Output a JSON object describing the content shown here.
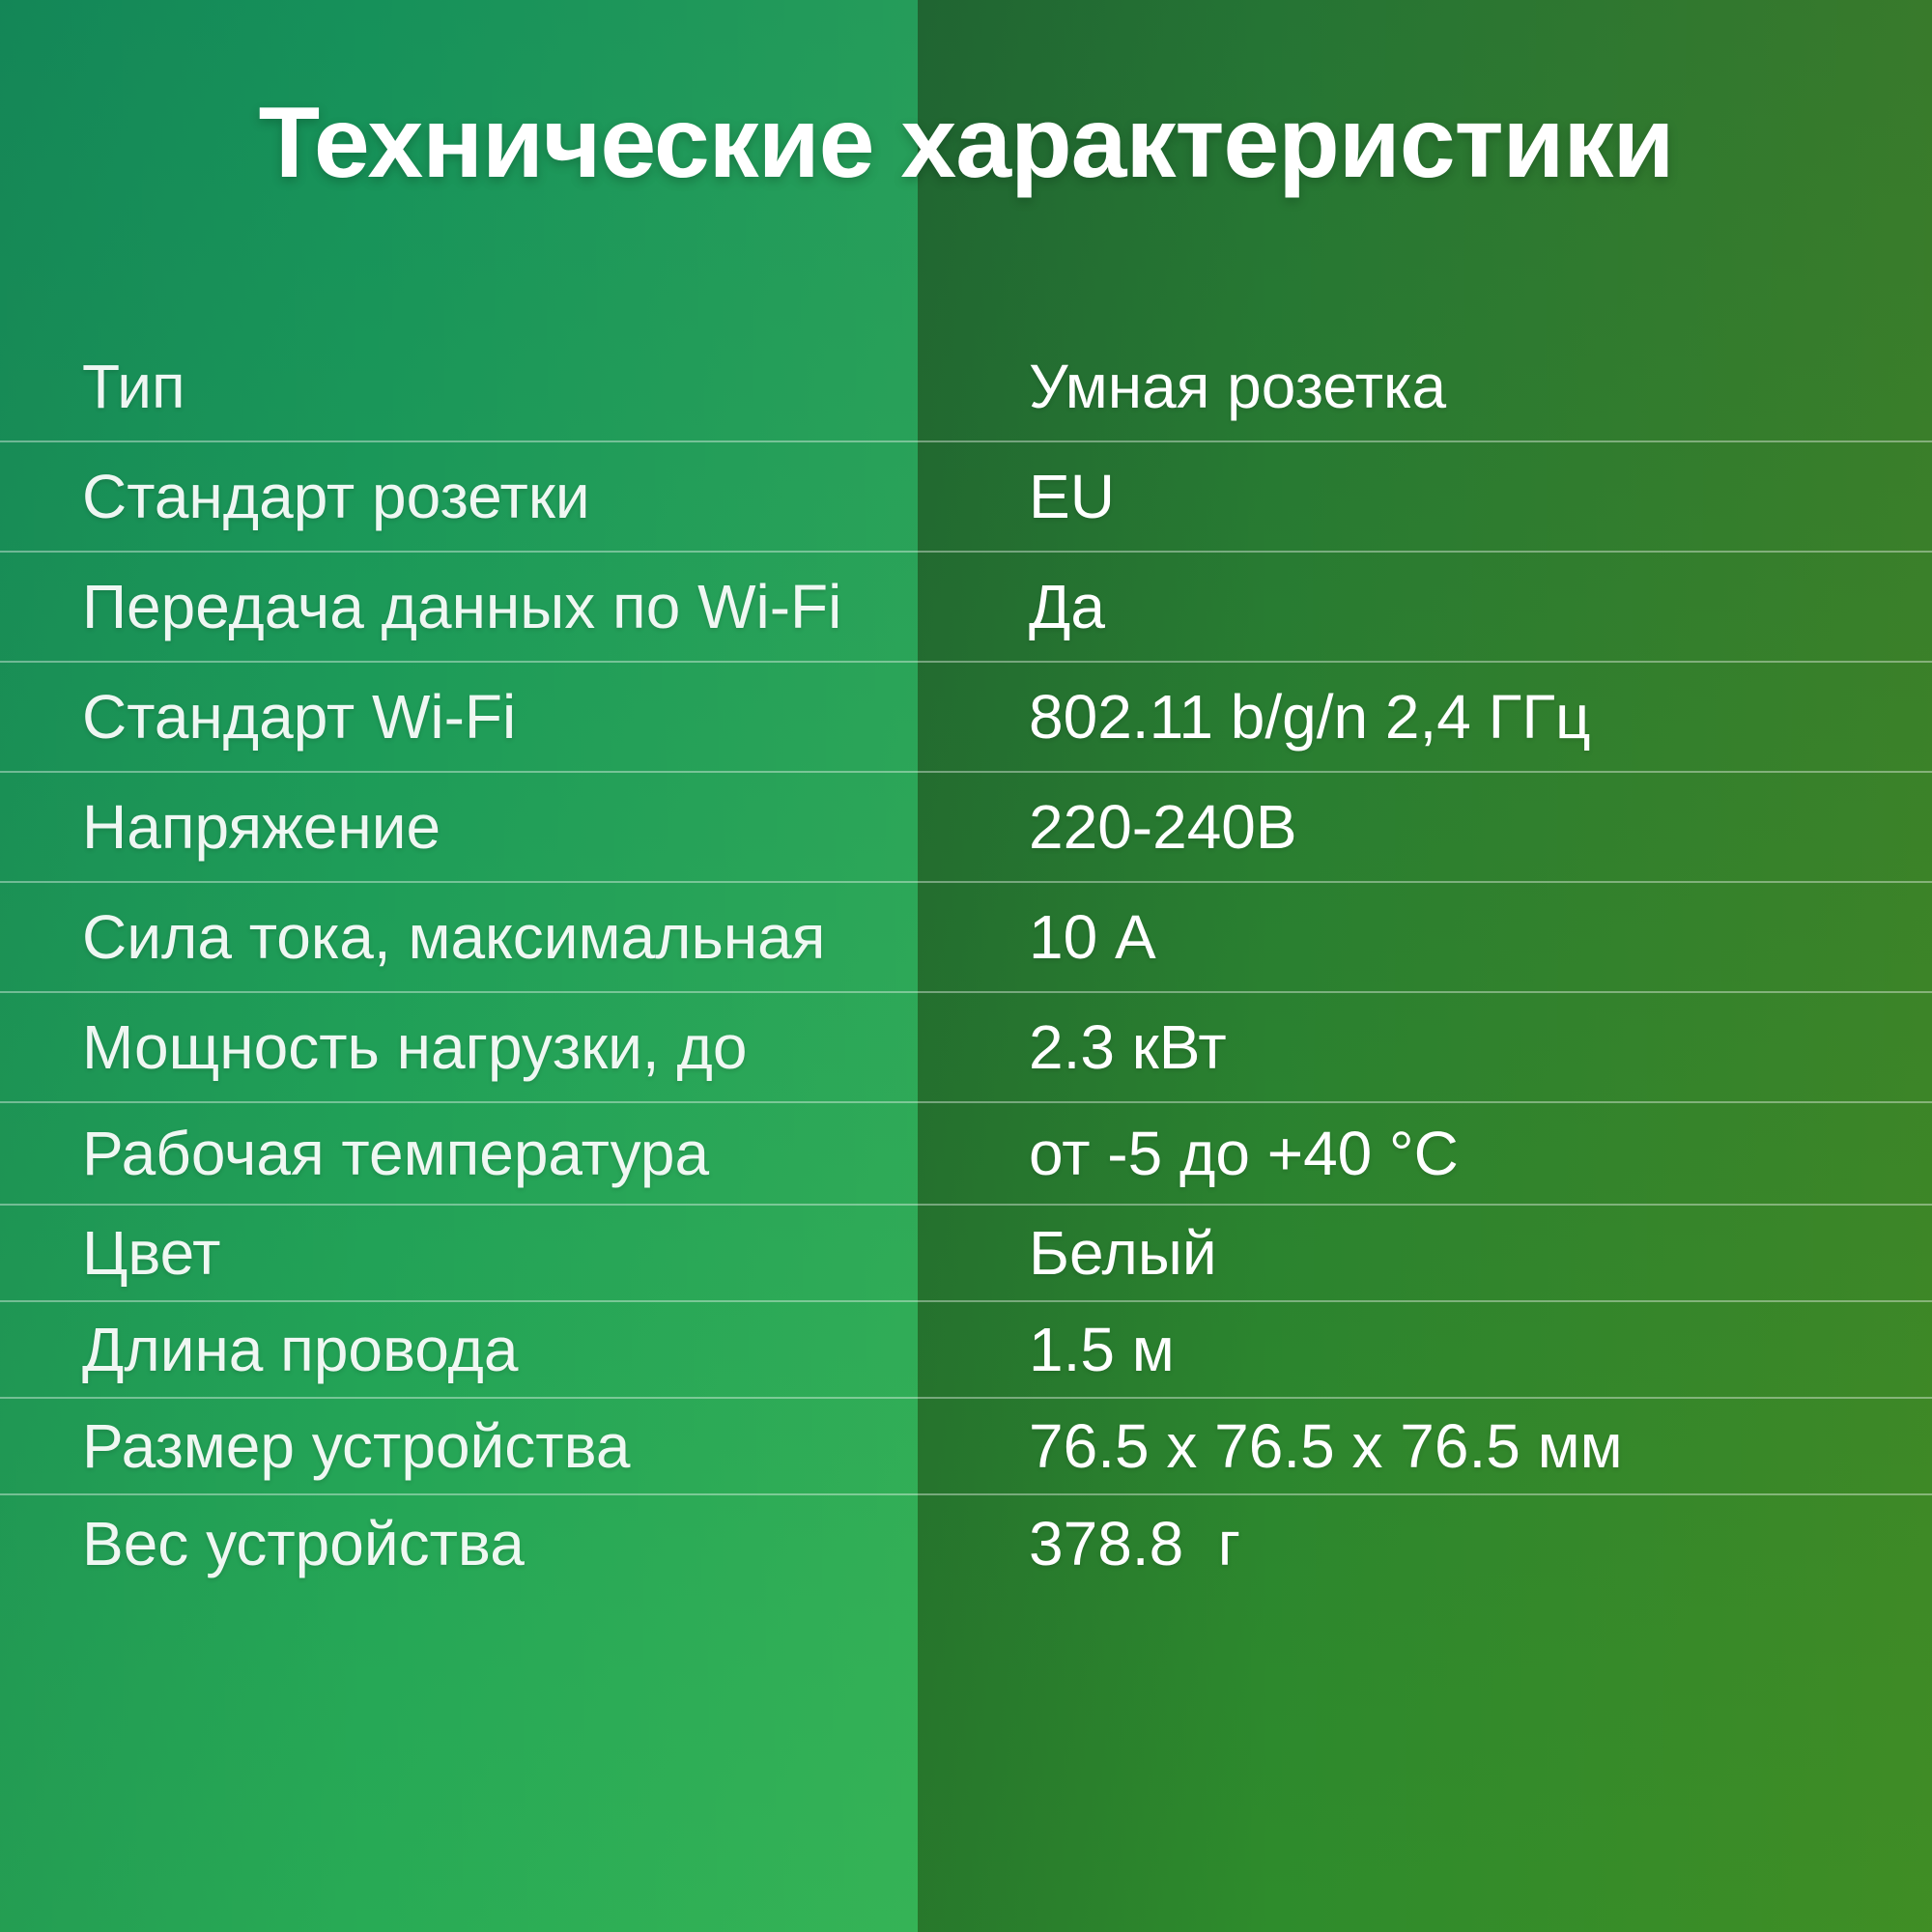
{
  "page": {
    "title": "Технические характеристики"
  },
  "colors": {
    "left_bg_top": "#12915a",
    "left_bg_bottom": "#2abc53",
    "right_bg_top": "#1e6f33",
    "right_bg_top_right": "#3e7a23",
    "right_bg_bottom": "#3a8a21",
    "divider": "rgba(255,255,255,0.38)",
    "text": "#ffffff"
  },
  "specs": {
    "rows": [
      {
        "label": "Тип",
        "value": "Умная розетка"
      },
      {
        "label": "Стандарт розетки",
        "value": "EU"
      },
      {
        "label": "Передача данных по Wi-Fi",
        "value": "Да"
      },
      {
        "label": "Стандарт Wi-Fi",
        "value": "802.11 b/g/n 2,4 ГГц"
      },
      {
        "label": "Напряжение",
        "value": "220-240В"
      },
      {
        "label": "Сила тока, максимальная",
        "value": "10 А"
      },
      {
        "label": "Мощность нагрузки, до",
        "value": "2.3 кВт"
      },
      {
        "label": "Рабочая температура",
        "value": "от -5 до +40 °C"
      },
      {
        "label": "Цвет",
        "value": "Белый"
      },
      {
        "label": "Длина провода",
        "value": "1.5 м"
      },
      {
        "label": "Размер устройства",
        "value": "76.5 x 76.5 x 76.5 мм"
      },
      {
        "label": "Вес устройства",
        "value": "378.8  г"
      }
    ]
  }
}
